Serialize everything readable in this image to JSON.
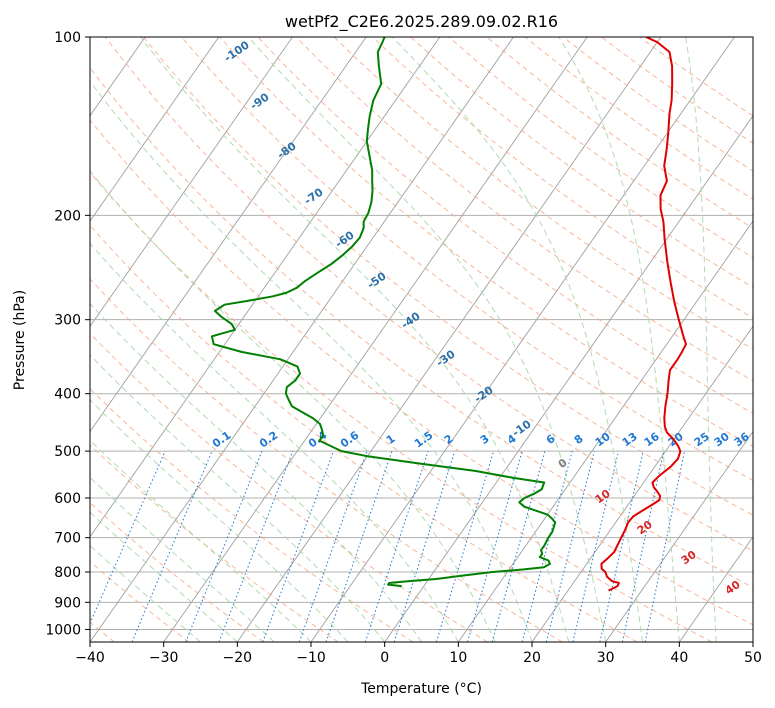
{
  "chart_data": {
    "type": "line",
    "title": "wetPf2_C2E6.2025.289.09.02.R16",
    "xlabel": "Temperature (°C)",
    "ylabel": "Pressure (hPa)",
    "xlim": [
      -40,
      50
    ],
    "ylim": [
      1050,
      100
    ],
    "y_scale": "log",
    "skew": true,
    "grid": true,
    "x_ticks": [
      "−40",
      "−30",
      "−20",
      "−10",
      "0",
      "10",
      "20",
      "30",
      "40",
      "50"
    ],
    "y_ticks": [
      "100",
      "200",
      "300",
      "400",
      "500",
      "600",
      "700",
      "800",
      "900",
      "1000"
    ],
    "colors": {
      "temperature": "#e00000",
      "dewpoint": "#008000",
      "isotherm": "#a0a0a0",
      "dry_adiabat": "#f4a582",
      "moist_adiabat": "#a6d8a6",
      "mixing_ratio": "#1f78d4",
      "isotherm_label": "#2b6fa8",
      "moist_label": "#d62728",
      "zero_label": "#808080"
    },
    "series": [
      {
        "key": "temperature",
        "points": [
          [
            860,
            25.5
          ],
          [
            845,
            26.3
          ],
          [
            835,
            26.2
          ],
          [
            828,
            25.0
          ],
          [
            815,
            24.0
          ],
          [
            800,
            23.3
          ],
          [
            790,
            22.5
          ],
          [
            775,
            22.0
          ],
          [
            760,
            22.3
          ],
          [
            740,
            22.6
          ],
          [
            720,
            22.4
          ],
          [
            700,
            22.2
          ],
          [
            680,
            22.0
          ],
          [
            660,
            21.7
          ],
          [
            645,
            21.8
          ],
          [
            630,
            22.5
          ],
          [
            615,
            23.3
          ],
          [
            605,
            23.8
          ],
          [
            595,
            23.5
          ],
          [
            585,
            22.7
          ],
          [
            575,
            21.8
          ],
          [
            565,
            21.2
          ],
          [
            550,
            21.5
          ],
          [
            530,
            22.2
          ],
          [
            515,
            22.4
          ],
          [
            500,
            22.0
          ],
          [
            490,
            21.2
          ],
          [
            478,
            20.0
          ],
          [
            465,
            18.4
          ],
          [
            455,
            17.6
          ],
          [
            440,
            16.7
          ],
          [
            420,
            15.7
          ],
          [
            400,
            14.8
          ],
          [
            380,
            13.7
          ],
          [
            365,
            12.9
          ],
          [
            350,
            12.9
          ],
          [
            340,
            12.8
          ],
          [
            330,
            12.6
          ],
          [
            320,
            11.5
          ],
          [
            300,
            9.3
          ],
          [
            280,
            7.0
          ],
          [
            260,
            4.7
          ],
          [
            240,
            2.3
          ],
          [
            220,
            -0.2
          ],
          [
            205,
            -2.1
          ],
          [
            195,
            -3.7
          ],
          [
            185,
            -5.0
          ],
          [
            175,
            -5.5
          ],
          [
            165,
            -7.3
          ],
          [
            155,
            -8.5
          ],
          [
            145,
            -9.9
          ],
          [
            135,
            -11.5
          ],
          [
            128,
            -12.5
          ],
          [
            120,
            -14.0
          ],
          [
            112,
            -15.7
          ],
          [
            106,
            -17.4
          ],
          [
            102,
            -20.0
          ],
          [
            100,
            -22.0
          ]
        ]
      },
      {
        "key": "dewpoint",
        "points": [
          [
            845,
            -3.0
          ],
          [
            840,
            -5.0
          ],
          [
            835,
            -5.0
          ],
          [
            830,
            -3.0
          ],
          [
            822,
            1.0
          ],
          [
            812,
            4.0
          ],
          [
            800,
            8.0
          ],
          [
            792,
            12.0
          ],
          [
            785,
            14.5
          ],
          [
            775,
            15.0
          ],
          [
            765,
            14.5
          ],
          [
            755,
            13.0
          ],
          [
            745,
            13.0
          ],
          [
            735,
            12.5
          ],
          [
            720,
            12.5
          ],
          [
            700,
            12.3
          ],
          [
            685,
            12.3
          ],
          [
            670,
            12.0
          ],
          [
            660,
            11.8
          ],
          [
            650,
            11.0
          ],
          [
            640,
            10.0
          ],
          [
            630,
            8.0
          ],
          [
            620,
            6.0
          ],
          [
            610,
            5.0
          ],
          [
            600,
            5.3
          ],
          [
            590,
            6.2
          ],
          [
            580,
            6.8
          ],
          [
            565,
            6.5
          ],
          [
            555,
            2.0
          ],
          [
            540,
            -4.0
          ],
          [
            525,
            -12.0
          ],
          [
            510,
            -20.0
          ],
          [
            500,
            -24.0
          ],
          [
            490,
            -26.0
          ],
          [
            480,
            -28.0
          ],
          [
            470,
            -28.0
          ],
          [
            460,
            -28.7
          ],
          [
            450,
            -29.5
          ],
          [
            440,
            -31.0
          ],
          [
            430,
            -33.0
          ],
          [
            420,
            -35.0
          ],
          [
            410,
            -36.0
          ],
          [
            400,
            -37.0
          ],
          [
            390,
            -37.5
          ],
          [
            380,
            -37.0
          ],
          [
            370,
            -37.0
          ],
          [
            360,
            -38.0
          ],
          [
            350,
            -41.0
          ],
          [
            340,
            -47.0
          ],
          [
            330,
            -51.5
          ],
          [
            320,
            -52.5
          ],
          [
            312,
            -50.0
          ],
          [
            305,
            -51.0
          ],
          [
            297,
            -53.0
          ],
          [
            290,
            -54.5
          ],
          [
            283,
            -53.8
          ],
          [
            278,
            -50.5
          ],
          [
            274,
            -48.0
          ],
          [
            270,
            -46.5
          ],
          [
            265,
            -45.6
          ],
          [
            258,
            -45.1
          ],
          [
            250,
            -44.2
          ],
          [
            242,
            -43.2
          ],
          [
            234,
            -42.5
          ],
          [
            226,
            -42.0
          ],
          [
            218,
            -41.8
          ],
          [
            210,
            -42.2
          ],
          [
            205,
            -42.8
          ],
          [
            198,
            -43.0
          ],
          [
            190,
            -43.6
          ],
          [
            182,
            -44.5
          ],
          [
            175,
            -45.5
          ],
          [
            168,
            -46.5
          ],
          [
            160,
            -48.0
          ],
          [
            150,
            -50.0
          ],
          [
            143,
            -51.0
          ],
          [
            136,
            -52.0
          ],
          [
            128,
            -53.0
          ],
          [
            120,
            -53.5
          ],
          [
            112,
            -55.5
          ],
          [
            106,
            -57.0
          ],
          [
            102,
            -57.3
          ],
          [
            100,
            -57.5
          ]
        ]
      }
    ],
    "isotherm_labels": [
      "-100",
      "-90",
      "-80",
      "-70",
      "-60",
      "-50",
      "-40",
      "-30",
      "-20",
      "-10"
    ],
    "mixing_ratio_labels": [
      "0.1",
      "0.2",
      "0.4",
      "0.6",
      "1",
      "1.5",
      "2",
      "3",
      "4",
      "6",
      "8",
      "10",
      "13",
      "16",
      "20",
      "25",
      "30",
      "36"
    ],
    "mixing_ratio_values": [
      0.1,
      0.2,
      0.4,
      0.6,
      1,
      1.5,
      2,
      3,
      4,
      6,
      8,
      10,
      13,
      16,
      20,
      25,
      30,
      36
    ],
    "moist_adiabat_labels": [
      "0",
      "10",
      "20",
      "30",
      "40"
    ]
  }
}
